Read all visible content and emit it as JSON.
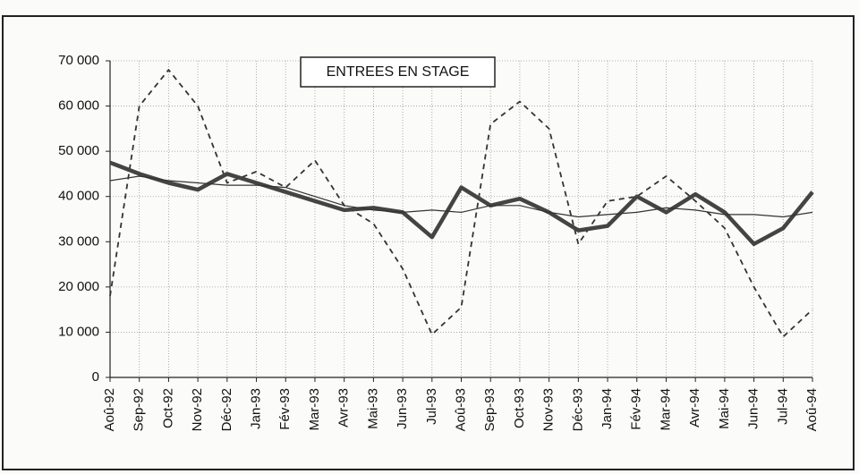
{
  "chart_data": {
    "type": "line",
    "title": "ENTREES EN STAGE",
    "categories": [
      "Aoû-92",
      "Sep-92",
      "Oct-92",
      "Nov-92",
      "Déc-92",
      "Jan-93",
      "Fév-93",
      "Mar-93",
      "Avr-93",
      "Mai-93",
      "Jun-93",
      "Jul-93",
      "Aoû-93",
      "Sep-93",
      "Oct-93",
      "Nov-93",
      "Déc-93",
      "Jan-94",
      "Fév-94",
      "Mar-94",
      "Avr-94",
      "Mai-94",
      "Jun-94",
      "Jul-94",
      "Aoû-94"
    ],
    "series": [
      {
        "color": "#333333",
        "style": "dashed",
        "values": [
          18000,
          60000,
          68000,
          60000,
          43000,
          45500,
          42000,
          48000,
          38000,
          34000,
          24000,
          9500,
          15500,
          56000,
          61000,
          55000,
          29500,
          39000,
          40000,
          44500,
          39000,
          33000,
          20000,
          9000,
          15000
        ]
      },
      {
        "color": "#444444",
        "style": "thick",
        "values": [
          47500,
          45000,
          43000,
          41500,
          45000,
          43000,
          41000,
          39000,
          37000,
          37500,
          36500,
          31000,
          42000,
          38000,
          39500,
          36500,
          32500,
          33500,
          40000,
          36500,
          40500,
          36500,
          29500,
          33000,
          41000
        ]
      },
      {
        "color": "#333333",
        "style": "thin",
        "values": [
          43500,
          44500,
          43500,
          43000,
          42500,
          42500,
          42000,
          40000,
          38000,
          37000,
          36500,
          37000,
          36500,
          38000,
          38000,
          36500,
          35500,
          36000,
          36500,
          37500,
          37000,
          36000,
          36000,
          35500,
          36500
        ]
      }
    ],
    "ylim": [
      0,
      70000
    ],
    "yticks": [
      0,
      {
        "value": 10000,
        "label": "10 000"
      },
      {
        "value": 20000,
        "label": "20 000"
      },
      {
        "value": 30000,
        "label": "30 000"
      },
      {
        "value": 40000,
        "label": "40 000"
      },
      {
        "value": 50000,
        "label": "50 000"
      },
      {
        "value": 60000,
        "label": "60 000"
      },
      {
        "value": 70000,
        "label": "70 000"
      }
    ],
    "grid": true
  }
}
